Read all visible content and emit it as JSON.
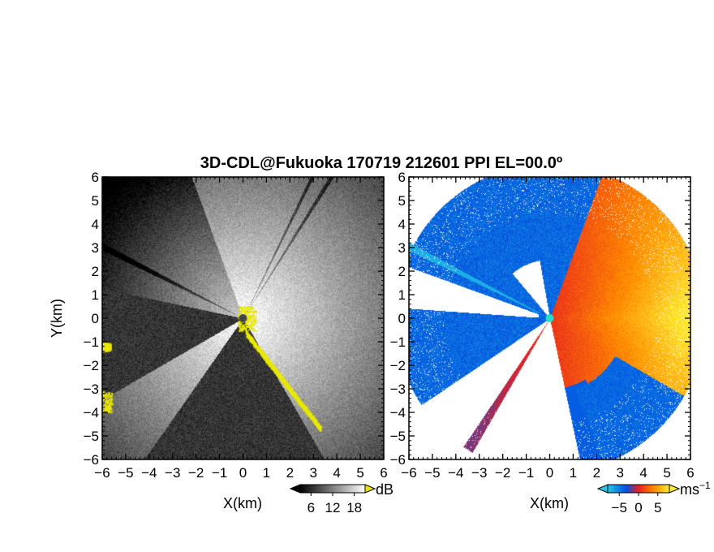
{
  "title": "3D-CDL@Fukuoka 170719 212601 PPI EL=00.0º",
  "chart_data": [
    {
      "type": "heatmap",
      "panel": "left",
      "quantity": "dB",
      "xlabel": "X(km)",
      "ylabel": "Y(km)",
      "xlim": [
        -6,
        6
      ],
      "ylim": [
        -6,
        6
      ],
      "xticks": [
        -6,
        -5,
        -4,
        -3,
        -2,
        -1,
        0,
        1,
        2,
        3,
        4,
        5,
        6
      ],
      "yticks": [
        -6,
        -5,
        -4,
        -3,
        -2,
        -1,
        0,
        1,
        2,
        3,
        4,
        5,
        6
      ],
      "grid": false,
      "colorbar": {
        "unit": "dB",
        "ticks": [
          6,
          12,
          18
        ],
        "range": [
          3,
          21
        ],
        "colors": [
          "#000000",
          "#ffffff"
        ],
        "overflow_color": "#e8e800"
      },
      "blocked_sector_deg": [
        168,
        210,
        235,
        300
      ],
      "edge_color": "#e8e800"
    },
    {
      "type": "heatmap",
      "panel": "right",
      "quantity": "ms-1",
      "xlabel": "X(km)",
      "ylabel": "",
      "xlim": [
        -6,
        6
      ],
      "ylim": [
        -6,
        6
      ],
      "xticks": [
        -6,
        -5,
        -4,
        -3,
        -2,
        -1,
        0,
        1,
        2,
        3,
        4,
        5,
        6
      ],
      "yticks": [
        -6,
        -5,
        -4,
        -3,
        -2,
        -1,
        0,
        1,
        2,
        3,
        4,
        5,
        6
      ],
      "grid": false,
      "colorbar": {
        "unit": "ms",
        "unit_exponent": "−1",
        "ticks": [
          -5,
          0,
          5
        ],
        "range": [
          -8,
          8
        ],
        "colors": [
          "#26c6e8",
          "#0050e0",
          "#e82020",
          "#ff8a00",
          "#ffee33"
        ]
      }
    }
  ],
  "labels": {
    "tick_minus": "−",
    "xlabel_left": "X(km)",
    "xlabel_right": "X(km)",
    "ylabel": "Y(km)",
    "cb_left_unit": "dB",
    "cb_left_ticks": [
      "6",
      "12",
      "18"
    ],
    "cb_right_unit": "ms",
    "cb_right_exp": "−1",
    "cb_right_ticks": [
      "−5",
      "0",
      "5"
    ]
  }
}
